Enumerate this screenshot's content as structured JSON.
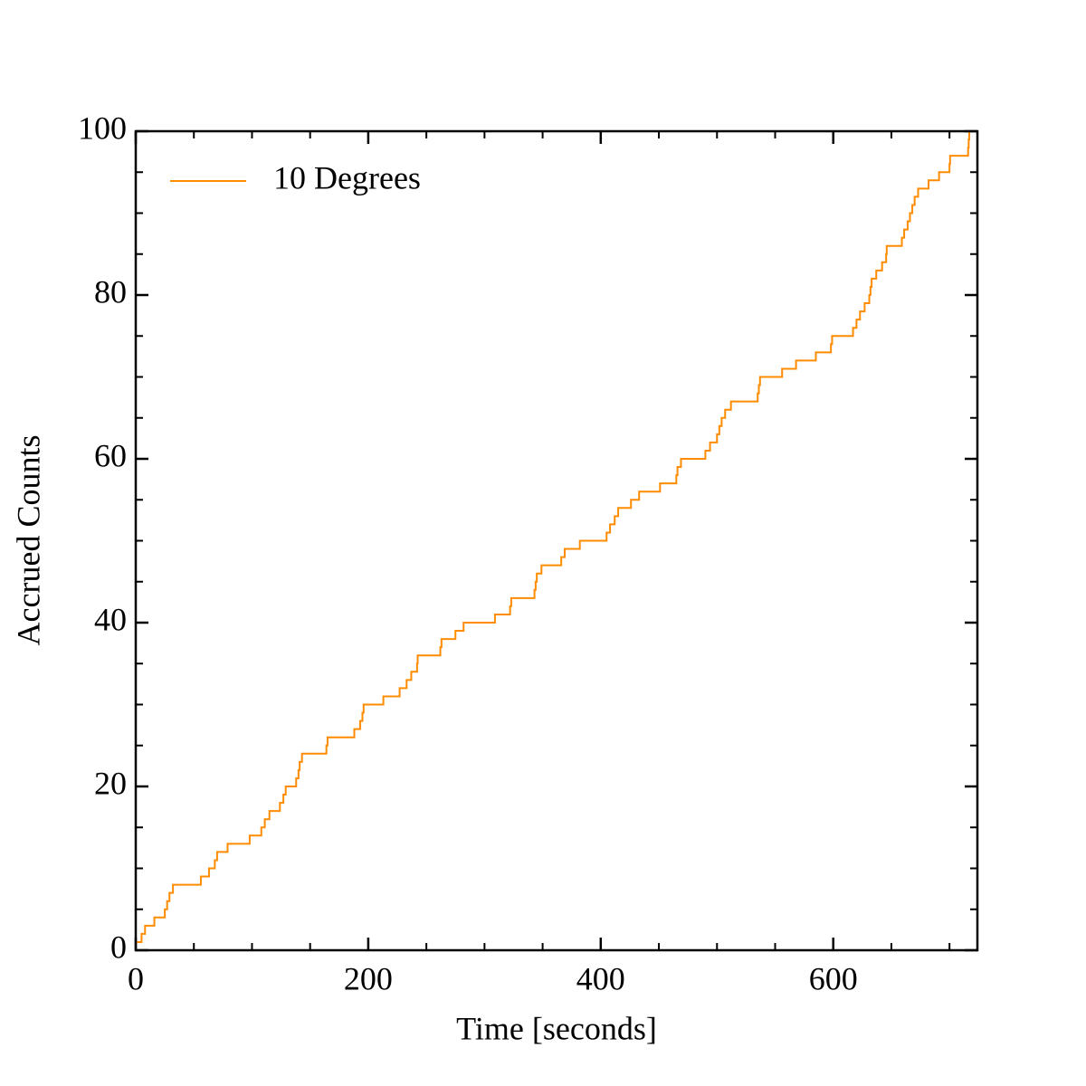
{
  "chart_data": {
    "type": "step",
    "xlabel": "Time [seconds]",
    "ylabel": "Accrued Counts",
    "xlim": [
      0,
      724
    ],
    "ylim": [
      0,
      100
    ],
    "xticks": [
      0,
      200,
      400,
      600
    ],
    "yticks": [
      0,
      20,
      40,
      60,
      80,
      100
    ],
    "legend": "upper left",
    "series": [
      {
        "name": "10 Degrees",
        "color": "#ff8c00",
        "x": [
          0,
          5,
          8,
          16,
          25,
          27,
          29,
          32,
          56,
          63,
          68,
          70,
          79,
          98,
          108,
          111,
          115,
          124,
          127,
          129,
          138,
          140,
          141,
          143,
          164,
          165,
          188,
          193,
          195,
          196,
          213,
          227,
          233,
          237,
          242,
          242.5,
          262,
          263,
          275,
          282,
          309,
          322,
          323,
          343,
          344,
          345,
          349,
          366,
          369,
          382,
          405,
          408,
          412,
          415,
          426,
          433,
          451,
          465,
          466,
          469,
          490,
          494,
          500,
          502,
          504,
          507,
          512,
          535,
          536,
          537,
          556,
          568,
          585,
          598,
          599,
          617,
          620,
          623,
          627,
          631,
          632,
          633,
          637,
          642,
          645.5,
          646,
          659,
          661,
          664,
          666,
          668,
          670,
          673,
          682,
          691,
          700,
          700.5,
          716,
          716.5,
          717
        ],
        "values": [
          1,
          2,
          3,
          4,
          5,
          6,
          7,
          8,
          9,
          10,
          11,
          12,
          13,
          14,
          15,
          16,
          17,
          18,
          19,
          20,
          21,
          22,
          23,
          24,
          25,
          26,
          27,
          28,
          29,
          30,
          31,
          32,
          33,
          34,
          35,
          36,
          37,
          38,
          39,
          40,
          41,
          42,
          43,
          44,
          45,
          46,
          47,
          48,
          49,
          50,
          51,
          52,
          53,
          54,
          55,
          56,
          57,
          58,
          59,
          60,
          61,
          62,
          63,
          64,
          65,
          66,
          67,
          68,
          69,
          70,
          71,
          72,
          73,
          74,
          75,
          76,
          77,
          78,
          79,
          80,
          81,
          82,
          83,
          84,
          85,
          86,
          87,
          88,
          89,
          90,
          91,
          92,
          93,
          94,
          95,
          96,
          97,
          98,
          99,
          100
        ]
      }
    ]
  }
}
